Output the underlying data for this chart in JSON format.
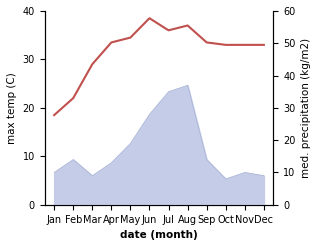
{
  "months": [
    "Jan",
    "Feb",
    "Mar",
    "Apr",
    "May",
    "Jun",
    "Jul",
    "Aug",
    "Sep",
    "Oct",
    "Nov",
    "Dec"
  ],
  "temperature": [
    18.5,
    22,
    29,
    33.5,
    34.5,
    38.5,
    36,
    37,
    33.5,
    33,
    33,
    33
  ],
  "precipitation": [
    10,
    14,
    9,
    13,
    19,
    28,
    35,
    37,
    14,
    8,
    10,
    9
  ],
  "temp_color": "#c0504d",
  "precip_fill_color": "#c5cce8",
  "precip_line_color": "#aab4d4",
  "temp_ylim": [
    0,
    40
  ],
  "precip_ylim": [
    0,
    60
  ],
  "xlabel": "date (month)",
  "ylabel_left": "max temp (C)",
  "ylabel_right": "med. precipitation (kg/m2)",
  "label_fontsize": 7.5,
  "tick_fontsize": 7,
  "bg_color": "#ffffff"
}
